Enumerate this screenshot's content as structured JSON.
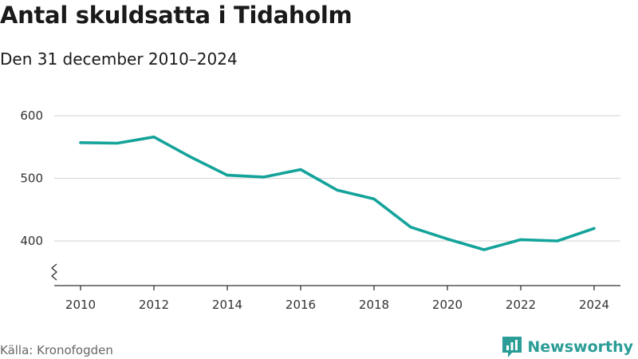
{
  "header": {
    "title": "Antal skuldsatta i Tidaholm",
    "subtitle": "Den 31 december 2010–2024"
  },
  "footer": {
    "source": "Källa: Kronofogden",
    "brand": "Newsworthy",
    "brand_icon": "newsworthy-logo-icon"
  },
  "colors": {
    "series": "#14a39a",
    "grid": "#d9d9d9",
    "axis": "#333333",
    "brand": "#2a9d96"
  },
  "chart_data": {
    "type": "line",
    "title": "Antal skuldsatta i Tidaholm",
    "subtitle": "Den 31 december 2010–2024",
    "x": [
      2010,
      2011,
      2012,
      2013,
      2014,
      2015,
      2016,
      2017,
      2018,
      2019,
      2020,
      2021,
      2022,
      2023,
      2024
    ],
    "series": [
      {
        "values": [
          557,
          556,
          566,
          534,
          505,
          502,
          514,
          481,
          467,
          422,
          403,
          386,
          402,
          400,
          420
        ]
      }
    ],
    "x_ticks": [
      "2010",
      "2012",
      "2014",
      "2016",
      "2018",
      "2020",
      "2022",
      "2024"
    ],
    "y_ticks": [
      "400",
      "500",
      "600"
    ],
    "ylim": [
      360,
      610
    ],
    "xlim": [
      2010,
      2024
    ],
    "grid": true,
    "axis_break": true,
    "legend": "none"
  }
}
